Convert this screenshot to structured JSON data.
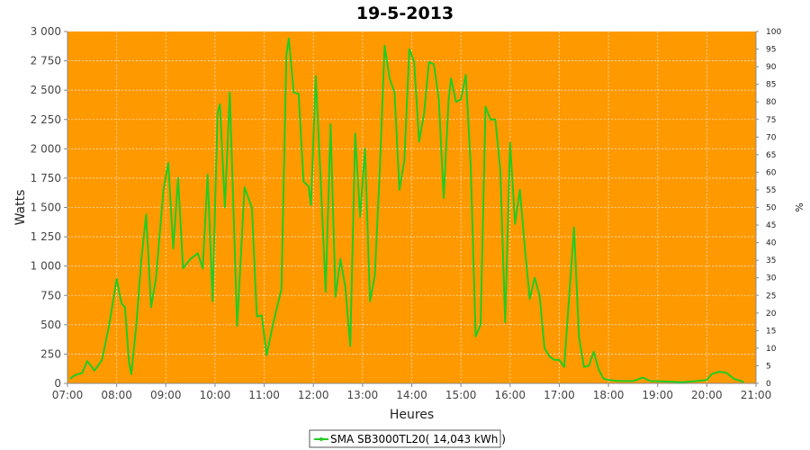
{
  "chart_data": {
    "type": "line",
    "title": "19-5-2013",
    "xlabel": "Heures",
    "ylabel": "Watts",
    "ylabel_right": "%",
    "xlim": [
      7.0,
      21.0
    ],
    "ylim": [
      0,
      3000
    ],
    "ylim_right": [
      0,
      100
    ],
    "x_ticks": [
      "07:00",
      "08:00",
      "09:00",
      "10:00",
      "11:00",
      "12:00",
      "13:00",
      "14:00",
      "15:00",
      "16:00",
      "17:00",
      "18:00",
      "19:00",
      "20:00",
      "21:00"
    ],
    "y_ticks": [
      {
        "value": 0,
        "label": "0"
      },
      {
        "value": 250,
        "label": "250"
      },
      {
        "value": 500,
        "label": "500"
      },
      {
        "value": 750,
        "label": "750"
      },
      {
        "value": 1000,
        "label": "1 000"
      },
      {
        "value": 1250,
        "label": "1 250"
      },
      {
        "value": 1500,
        "label": "1 500"
      },
      {
        "value": 1750,
        "label": "1 750"
      },
      {
        "value": 2000,
        "label": "2 000"
      },
      {
        "value": 2250,
        "label": "2 250"
      },
      {
        "value": 2500,
        "label": "2 500"
      },
      {
        "value": 2750,
        "label": "2 750"
      },
      {
        "value": 3000,
        "label": "3 000"
      }
    ],
    "y_ticks_right": [
      "0",
      "5",
      "10",
      "15",
      "20",
      "25",
      "30",
      "35",
      "40",
      "45",
      "50",
      "55",
      "60",
      "65",
      "70",
      "75",
      "80",
      "85",
      "90",
      "95",
      "100"
    ],
    "grid": true,
    "background_color": "#ff9900",
    "legend_position": "bottom",
    "series": [
      {
        "name": "SMA SB3000TL20( 14,043 kWh )",
        "color": "#22cc22",
        "points": [
          [
            7.05,
            40
          ],
          [
            7.15,
            70
          ],
          [
            7.3,
            90
          ],
          [
            7.4,
            190
          ],
          [
            7.55,
            110
          ],
          [
            7.7,
            200
          ],
          [
            7.85,
            500
          ],
          [
            8.0,
            890
          ],
          [
            8.1,
            680
          ],
          [
            8.17,
            650
          ],
          [
            8.25,
            180
          ],
          [
            8.3,
            80
          ],
          [
            8.4,
            500
          ],
          [
            8.5,
            1050
          ],
          [
            8.6,
            1440
          ],
          [
            8.7,
            650
          ],
          [
            8.8,
            900
          ],
          [
            8.95,
            1650
          ],
          [
            9.05,
            1880
          ],
          [
            9.15,
            1150
          ],
          [
            9.25,
            1750
          ],
          [
            9.35,
            980
          ],
          [
            9.5,
            1060
          ],
          [
            9.65,
            1110
          ],
          [
            9.75,
            980
          ],
          [
            9.85,
            1780
          ],
          [
            9.95,
            700
          ],
          [
            10.05,
            2300
          ],
          [
            10.1,
            2380
          ],
          [
            10.2,
            1500
          ],
          [
            10.3,
            2480
          ],
          [
            10.45,
            490
          ],
          [
            10.6,
            1670
          ],
          [
            10.75,
            1500
          ],
          [
            10.85,
            570
          ],
          [
            10.95,
            580
          ],
          [
            11.05,
            240
          ],
          [
            11.15,
            450
          ],
          [
            11.25,
            630
          ],
          [
            11.35,
            800
          ],
          [
            11.45,
            2800
          ],
          [
            11.5,
            2940
          ],
          [
            11.6,
            2480
          ],
          [
            11.7,
            2470
          ],
          [
            11.8,
            1720
          ],
          [
            11.9,
            1680
          ],
          [
            11.95,
            1520
          ],
          [
            12.05,
            2620
          ],
          [
            12.15,
            1720
          ],
          [
            12.25,
            780
          ],
          [
            12.35,
            2210
          ],
          [
            12.45,
            740
          ],
          [
            12.55,
            1060
          ],
          [
            12.65,
            820
          ],
          [
            12.75,
            320
          ],
          [
            12.85,
            2130
          ],
          [
            12.95,
            1420
          ],
          [
            13.05,
            2000
          ],
          [
            13.15,
            700
          ],
          [
            13.25,
            920
          ],
          [
            13.35,
            1820
          ],
          [
            13.45,
            2880
          ],
          [
            13.55,
            2600
          ],
          [
            13.65,
            2480
          ],
          [
            13.75,
            1650
          ],
          [
            13.85,
            1900
          ],
          [
            13.95,
            2850
          ],
          [
            14.05,
            2740
          ],
          [
            14.15,
            2060
          ],
          [
            14.25,
            2300
          ],
          [
            14.35,
            2740
          ],
          [
            14.45,
            2720
          ],
          [
            14.55,
            2420
          ],
          [
            14.65,
            1580
          ],
          [
            14.75,
            2420
          ],
          [
            14.8,
            2600
          ],
          [
            14.9,
            2400
          ],
          [
            15.0,
            2420
          ],
          [
            15.1,
            2630
          ],
          [
            15.2,
            1840
          ],
          [
            15.3,
            400
          ],
          [
            15.4,
            500
          ],
          [
            15.5,
            2360
          ],
          [
            15.6,
            2250
          ],
          [
            15.7,
            2250
          ],
          [
            15.8,
            1820
          ],
          [
            15.9,
            520
          ],
          [
            16.0,
            2050
          ],
          [
            16.1,
            1360
          ],
          [
            16.2,
            1650
          ],
          [
            16.3,
            1150
          ],
          [
            16.4,
            720
          ],
          [
            16.5,
            900
          ],
          [
            16.6,
            750
          ],
          [
            16.7,
            300
          ],
          [
            16.8,
            230
          ],
          [
            16.9,
            200
          ],
          [
            17.0,
            200
          ],
          [
            17.1,
            140
          ],
          [
            17.2,
            740
          ],
          [
            17.3,
            1330
          ],
          [
            17.4,
            400
          ],
          [
            17.5,
            140
          ],
          [
            17.6,
            150
          ],
          [
            17.7,
            270
          ],
          [
            17.8,
            120
          ],
          [
            17.9,
            40
          ],
          [
            18.0,
            30
          ],
          [
            18.2,
            20
          ],
          [
            18.5,
            20
          ],
          [
            18.7,
            50
          ],
          [
            18.85,
            20
          ],
          [
            19.2,
            15
          ],
          [
            19.5,
            10
          ],
          [
            19.8,
            20
          ],
          [
            20.0,
            30
          ],
          [
            20.1,
            80
          ],
          [
            20.25,
            100
          ],
          [
            20.4,
            90
          ],
          [
            20.55,
            40
          ],
          [
            20.7,
            20
          ],
          [
            20.75,
            10
          ]
        ]
      }
    ]
  }
}
